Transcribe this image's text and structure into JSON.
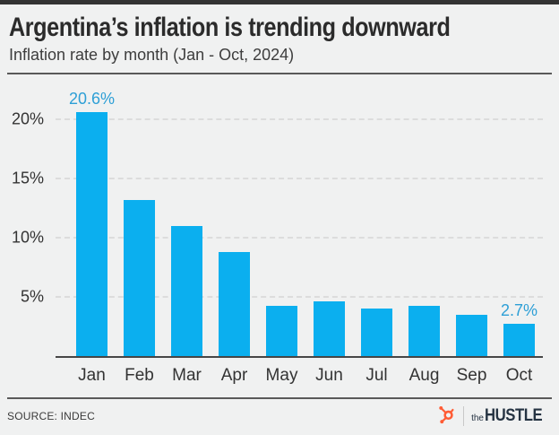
{
  "header": {
    "title": "Argentina’s inflation is trending downward",
    "subtitle": "Inflation rate by month (Jan - Oct, 2024)"
  },
  "chart_data": {
    "type": "bar",
    "title": "Argentina’s inflation is trending downward",
    "subtitle": "Inflation rate by month (Jan - Oct, 2024)",
    "categories": [
      "Jan",
      "Feb",
      "Mar",
      "Apr",
      "May",
      "Jun",
      "Jul",
      "Aug",
      "Sep",
      "Oct"
    ],
    "values": [
      20.6,
      13.2,
      11.0,
      8.8,
      4.2,
      4.6,
      4.0,
      4.2,
      3.5,
      2.7
    ],
    "unit": "%",
    "xlabel": "",
    "ylabel": "",
    "ylim": [
      0,
      23
    ],
    "yticks": [
      5,
      10,
      15,
      20
    ],
    "ytick_labels": [
      "5%",
      "10%",
      "15%",
      "20%"
    ],
    "grid": "horizontal-dashed",
    "legend": "none",
    "annotations": [
      {
        "category": "Jan",
        "text": "20.6%"
      },
      {
        "category": "Oct",
        "text": "2.7%"
      }
    ],
    "bar_color": "#0bafef",
    "annotation_color": "#2d9fd6",
    "grid_color": "#dcdcdc",
    "axis_color": "#464646",
    "tick_color": "#333333"
  },
  "footer": {
    "source_label": "SOURCE: INDEC",
    "brand": {
      "prefix": "the",
      "name": "HUSTLE"
    }
  },
  "colors": {
    "background": "#f0f1f1",
    "top_border": "#333333",
    "title_text": "#2b2b2b",
    "rule": "#595959",
    "hubspot_orange": "#ff5c35",
    "hustle_navy": "#253342"
  }
}
